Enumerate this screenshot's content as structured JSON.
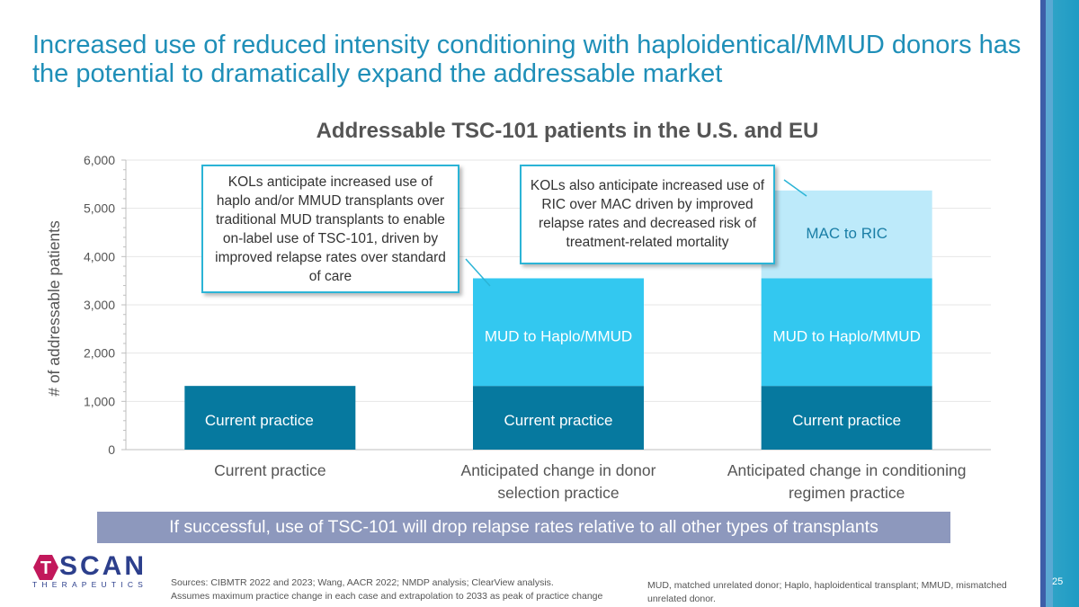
{
  "headline": "Increased use of reduced intensity conditioning with haploidentical/MMUD donors has the potential to dramatically expand the addressable market",
  "chart_data": {
    "type": "bar",
    "stacked": true,
    "title": "Addressable TSC-101 patients in the U.S. and EU",
    "ylabel": "# of addressable patients",
    "xlabel": "",
    "ylim": [
      0,
      6000
    ],
    "yticks": [
      0,
      1000,
      2000,
      3000,
      4000,
      5000,
      6000
    ],
    "ytick_labels": [
      "0",
      "1,000",
      "2,000",
      "3,000",
      "4,000",
      "5,000",
      "6,000"
    ],
    "grid": true,
    "categories": [
      [
        "Current practice"
      ],
      [
        "Anticipated change in donor",
        "selection practice"
      ],
      [
        "Anticipated change in conditioning",
        "regimen practice"
      ]
    ],
    "series": [
      {
        "segment_labels": [
          "Current practice",
          "Current practice",
          "Current practice"
        ],
        "values": [
          1320,
          1320,
          1320
        ],
        "color": "#06799f"
      },
      {
        "segment_labels": [
          "",
          "MUD to Haplo/MMUD",
          "MUD to Haplo/MMUD"
        ],
        "values": [
          0,
          2230,
          2230
        ],
        "color": "#33c8f0"
      },
      {
        "segment_labels": [
          "",
          "",
          "MAC to RIC"
        ],
        "values": [
          0,
          0,
          1820
        ],
        "color": "#bdeafa"
      }
    ]
  },
  "callouts": {
    "left": "KOLs anticipate increased use of haplo and/or MMUD transplants over traditional MUD transplants to enable on-label use of TSC-101, driven by improved relapse rates over standard of care",
    "right": "KOLs also anticipate increased use of RIC over MAC driven by improved relapse rates and decreased risk of treatment-related mortality"
  },
  "banner": "If successful, use of TSC-101 will drop relapse rates relative to all other types of transplants",
  "logo": {
    "word": "SCAN",
    "sub": "THERAPEUTICS",
    "mark_letter": "T",
    "mark_color": "#c2185b"
  },
  "footer": {
    "sources_line1": "Sources: CIBMTR 2022 and 2023; Wang, AACR 2022; NMDP analysis; ClearView analysis.",
    "sources_line2": "Assumes maximum practice change in each case and extrapolation to 2033 as peak of practice change",
    "abbreviations": "MUD, matched unrelated donor; Haplo, haploidentical transplant; MMUD, mismatched unrelated donor."
  },
  "page_number": "25"
}
